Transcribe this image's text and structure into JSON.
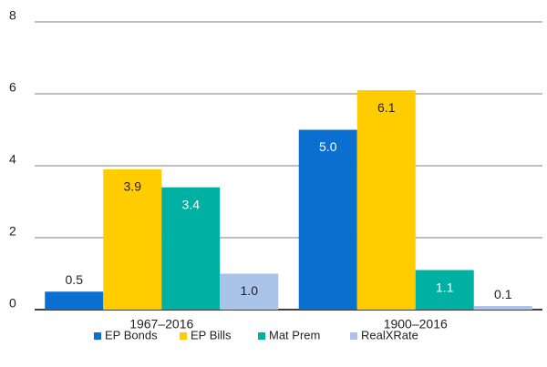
{
  "chart_data": {
    "type": "bar",
    "categories": [
      "1967–2016",
      "1900–2016"
    ],
    "series": [
      {
        "name": "EP Bonds",
        "color": "#0b6fd0",
        "values": [
          0.5,
          5.0
        ],
        "value_labels": [
          "0.5",
          "5.0"
        ]
      },
      {
        "name": "EP Bills",
        "color": "#ffcc00",
        "values": [
          3.9,
          6.1
        ],
        "value_labels": [
          "3.9",
          "6.1"
        ]
      },
      {
        "name": "Mat Prem",
        "color": "#00b1a3",
        "values": [
          3.4,
          1.1
        ],
        "value_labels": [
          "3.4",
          "1.1"
        ]
      },
      {
        "name": "RealXRate",
        "color": "#a9c4e8",
        "values": [
          1.0,
          0.1
        ],
        "value_labels": [
          "1.0",
          "0.1"
        ]
      }
    ],
    "ylim": [
      0,
      8
    ],
    "yticks": [
      0,
      2,
      4,
      6,
      8
    ],
    "grid": true,
    "legend": "bottom"
  }
}
